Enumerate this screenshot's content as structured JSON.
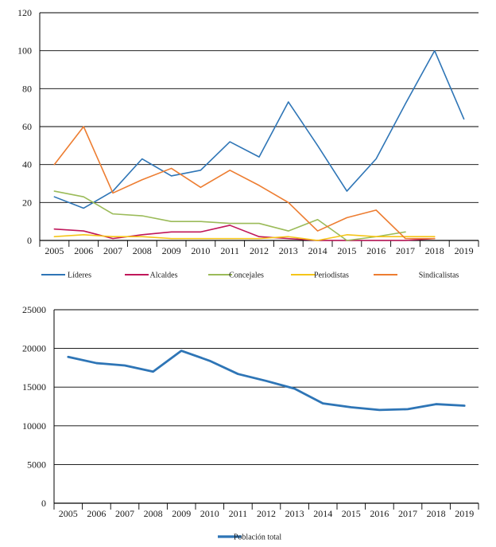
{
  "chart_data": [
    {
      "type": "line",
      "title": "",
      "xlabel": "",
      "ylabel": "",
      "categories": [
        "2005",
        "2006",
        "2007",
        "2008",
        "2009",
        "2010",
        "2011",
        "2012",
        "2013",
        "2014",
        "2015",
        "2016",
        "2017",
        "2018",
        "2019"
      ],
      "ylim": [
        0,
        120
      ],
      "yticks": [
        0,
        20,
        40,
        60,
        80,
        100,
        120
      ],
      "grid": "horizontal",
      "legend_position": "bottom",
      "series": [
        {
          "name": "Líderes",
          "color": "#2e75b6",
          "values": [
            23,
            17,
            26,
            43,
            34,
            37,
            52,
            44,
            73,
            50,
            26,
            43,
            72,
            100,
            64
          ]
        },
        {
          "name": "Alcaldes",
          "color": "#c0175a",
          "values": [
            6,
            5,
            1,
            3,
            4.5,
            4.5,
            8,
            2,
            1,
            0,
            0,
            0,
            0,
            1,
            null
          ]
        },
        {
          "name": "Concejales",
          "color": "#9bbb59",
          "values": [
            26,
            23,
            14,
            13,
            10,
            10,
            9,
            9,
            5,
            11,
            0,
            2,
            4.5,
            null,
            null
          ]
        },
        {
          "name": "Periodistas",
          "color": "#f5c518",
          "values": [
            2,
            3,
            2,
            2,
            1,
            1,
            1,
            1,
            2,
            0,
            3,
            2,
            2,
            2,
            null
          ]
        },
        {
          "name": "Sindicalistas",
          "color": "#ed7d31",
          "values": [
            40,
            60,
            25,
            32,
            38,
            28,
            37,
            29,
            20,
            5,
            12,
            16,
            1,
            1,
            null
          ]
        }
      ]
    },
    {
      "type": "line",
      "title": "",
      "xlabel": "",
      "ylabel": "",
      "categories": [
        "2005",
        "2006",
        "2007",
        "2008",
        "2009",
        "2010",
        "2011",
        "2012",
        "2013",
        "2014",
        "2015",
        "2016",
        "2017",
        "2018",
        "2019"
      ],
      "ylim": [
        0,
        25000
      ],
      "yticks": [
        0,
        5000,
        10000,
        15000,
        20000,
        25000
      ],
      "grid": "horizontal",
      "legend_position": "bottom",
      "series": [
        {
          "name": "Población total",
          "color": "#2e75b6",
          "values": [
            18900,
            18100,
            17800,
            17000,
            19700,
            18400,
            16700,
            15800,
            14800,
            12900,
            12400,
            12050,
            12150,
            12800,
            12600
          ]
        }
      ]
    }
  ]
}
